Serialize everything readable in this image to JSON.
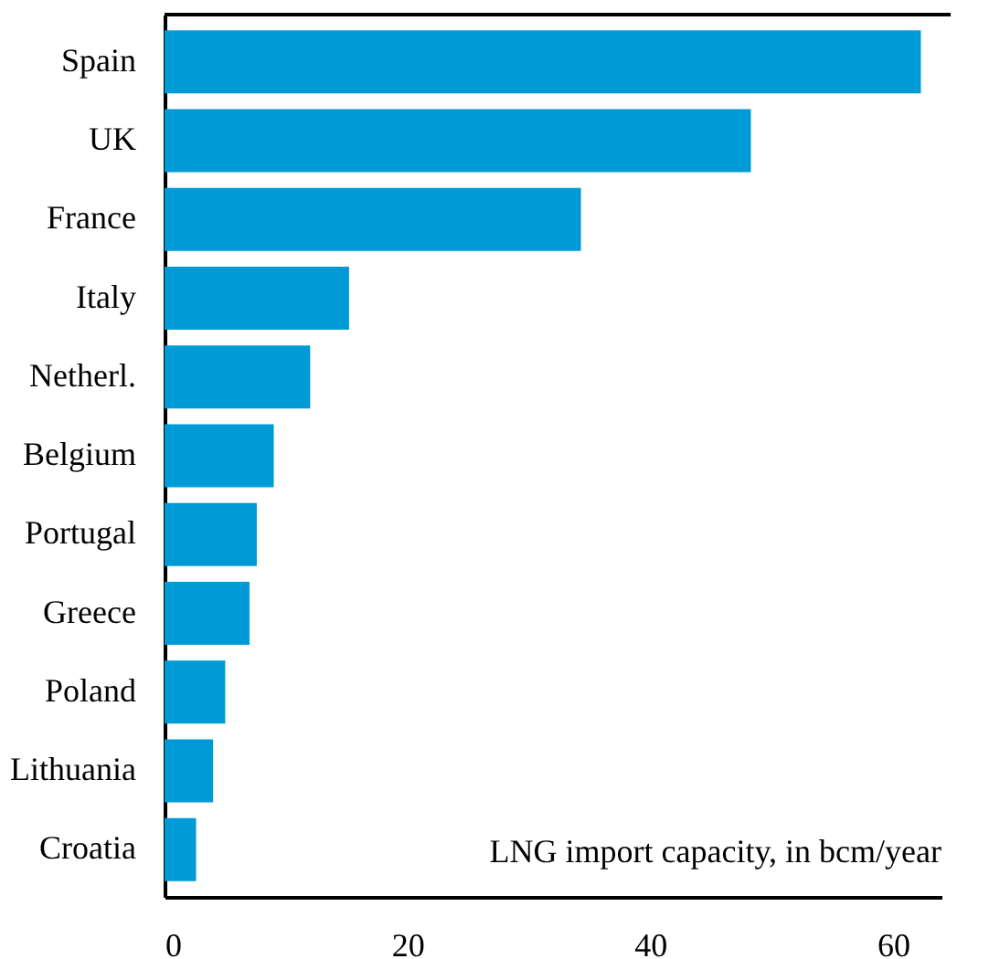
{
  "chart_data": {
    "type": "bar",
    "orientation": "horizontal",
    "categories": [
      "Spain",
      "UK",
      "France",
      "Italy",
      "Netherl.",
      "Belgium",
      "Portugal",
      "Greece",
      "Poland",
      "Lithuania",
      "Croatia"
    ],
    "values": [
      62.3,
      48.3,
      34.3,
      15.2,
      12.0,
      9.0,
      7.6,
      7.0,
      5.0,
      4.0,
      2.6
    ],
    "color": "#009bd6",
    "xlim": [
      0,
      64
    ],
    "xticks": [
      0,
      20,
      40,
      60
    ],
    "grid": false,
    "annotations": [
      "LNG import capacity, in bcm/year"
    ]
  }
}
